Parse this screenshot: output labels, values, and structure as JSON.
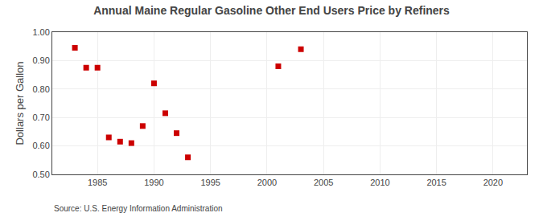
{
  "chart_data": {
    "type": "scatter",
    "title": "Annual Maine Regular Gasoline Other End Users Price by Refiners",
    "ylabel": "Dollars per Gallon",
    "annotations": [
      "Source: U.S. Energy Information Administration"
    ],
    "x": [
      1983,
      1984,
      1985,
      1986,
      1987,
      1988,
      1989,
      1990,
      1991,
      1992,
      1993,
      2001,
      2003
    ],
    "values": [
      0.945,
      0.875,
      0.875,
      0.63,
      0.615,
      0.61,
      0.67,
      0.82,
      0.715,
      0.645,
      0.56,
      0.88,
      0.94
    ],
    "color": "#cc0000",
    "marker": "square",
    "xlim": [
      1981,
      2023
    ],
    "ylim": [
      0.5,
      1.0
    ],
    "xticks": [
      1985,
      1990,
      1995,
      2000,
      2005,
      2010,
      2015,
      2020
    ],
    "yticks": [
      {
        "value": 0.5,
        "label": "0.50"
      },
      {
        "value": 0.6,
        "label": "0.60"
      },
      {
        "value": 0.7,
        "label": "0.70"
      },
      {
        "value": 0.8,
        "label": "0.80"
      },
      {
        "value": 0.9,
        "label": "0.90"
      },
      {
        "value": 1.0,
        "label": "1.00"
      }
    ],
    "grid": true
  }
}
